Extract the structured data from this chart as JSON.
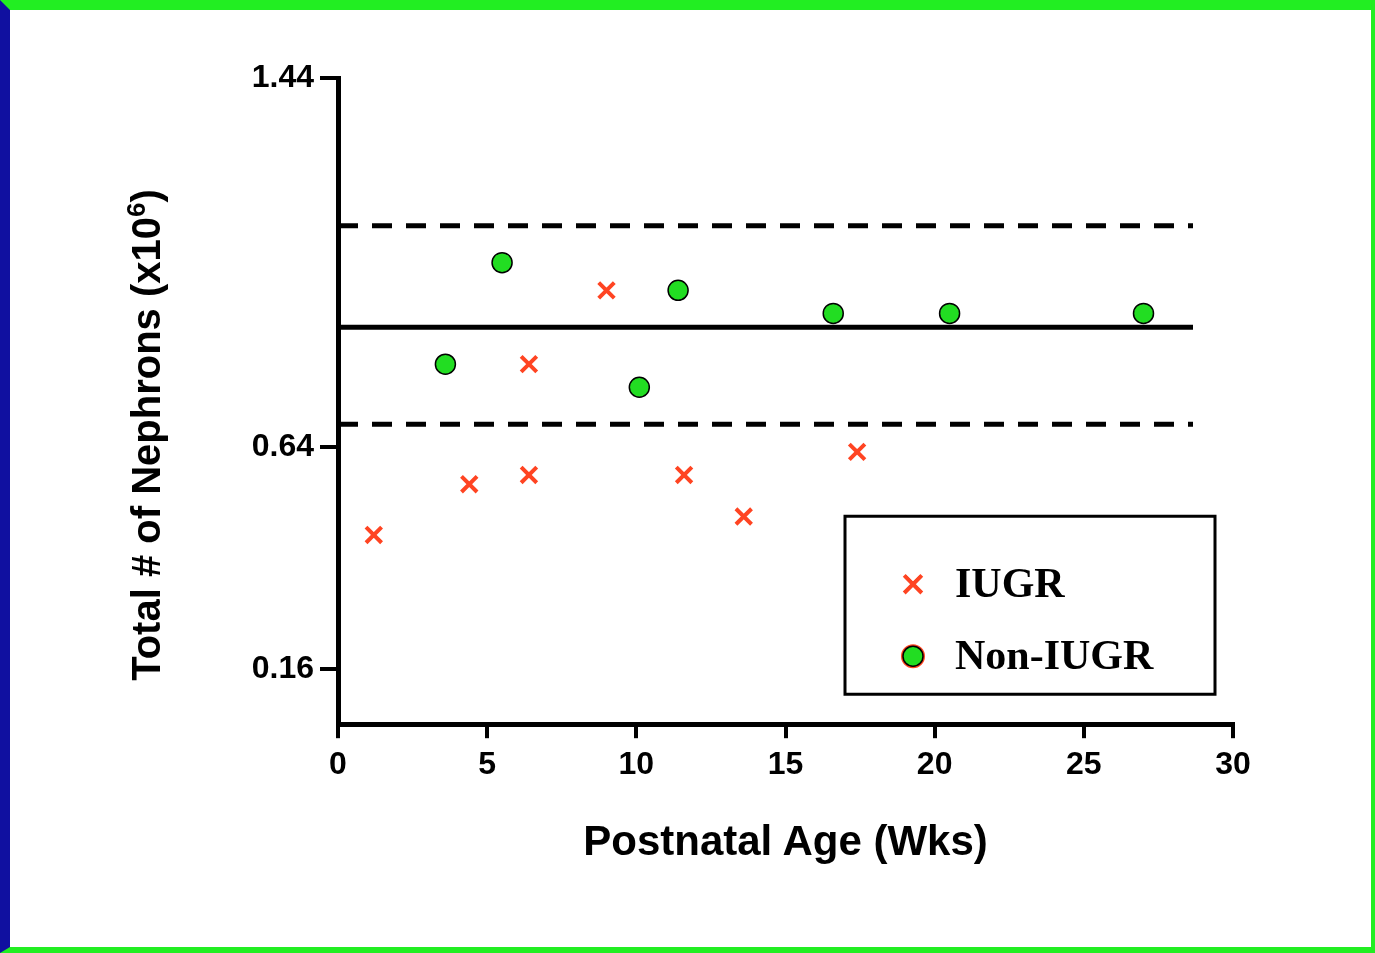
{
  "chart_data": {
    "type": "scatter",
    "xlabel": "Postnatal Age (Wks)",
    "ylabel": "Total # of Nephrons (x10$^{6}$)",
    "xlim": [
      0,
      30
    ],
    "xticks": [
      0,
      5,
      10,
      15,
      20,
      25,
      30
    ],
    "ylim": [
      0.04,
      1.44
    ],
    "yticks": [
      0.16,
      0.64,
      1.44
    ],
    "legend": "bottom right",
    "grid": false,
    "series": [
      {
        "name": "IUGR",
        "color": "#ff4422",
        "marker": "cross",
        "x": [
          1.2,
          4.4,
          6.4,
          6.4,
          9.0,
          11.6,
          13.6,
          17.4
        ],
        "values": [
          0.45,
          0.56,
          0.58,
          0.82,
          0.98,
          0.58,
          0.49,
          0.63
        ]
      },
      {
        "name": "Non-IUGR",
        "color": "#22dd22",
        "marker": "circle",
        "x": [
          3.6,
          5.5,
          10.1,
          11.4,
          16.6,
          20.5,
          27.0
        ],
        "values": [
          0.82,
          1.04,
          0.77,
          0.98,
          0.93,
          0.93,
          0.93
        ]
      }
    ],
    "ref_lines": [
      {
        "axis": "y",
        "value": 1.12,
        "line_style": "dashed",
        "color": "#000000"
      },
      {
        "axis": "y",
        "value": 0.9,
        "line_style": "solid",
        "color": "#000000"
      },
      {
        "axis": "y",
        "value": 0.69,
        "line_style": "dashed",
        "color": "#000000"
      }
    ]
  }
}
